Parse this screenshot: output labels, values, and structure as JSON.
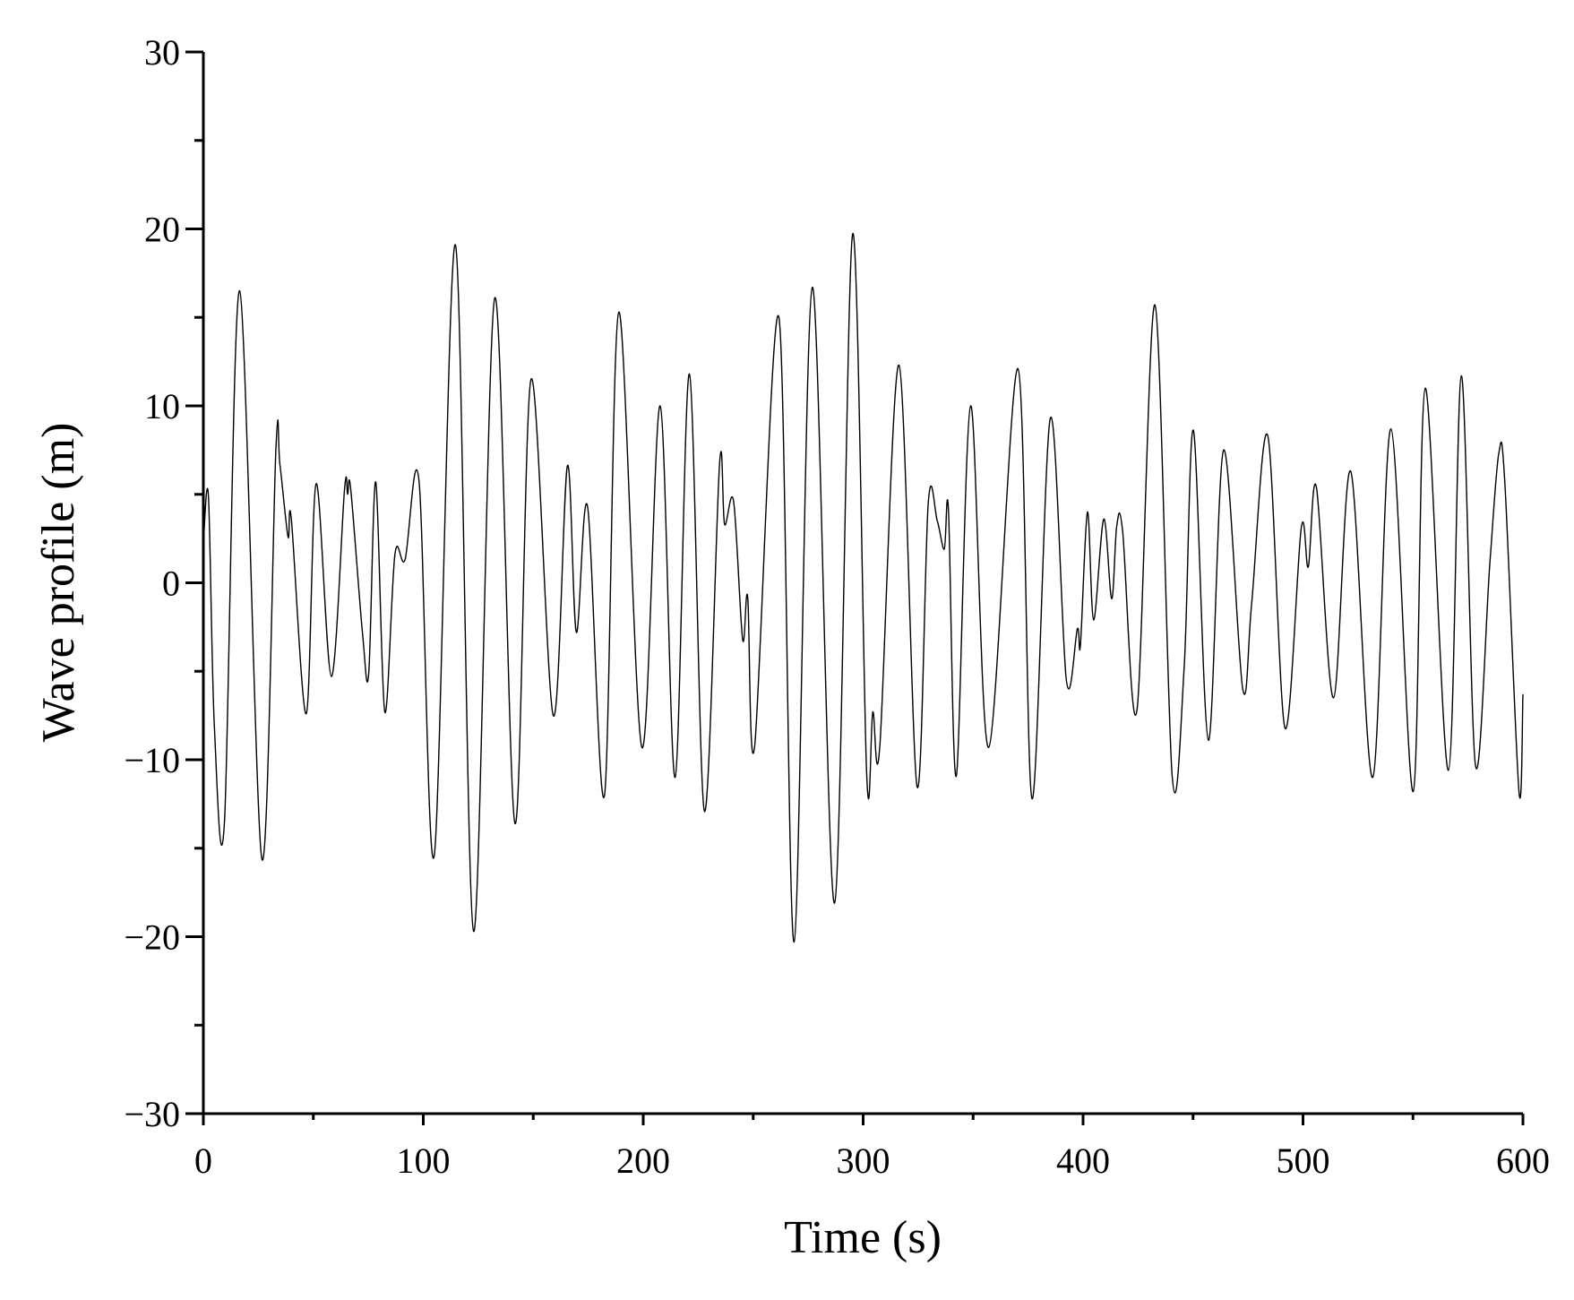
{
  "chart_data": {
    "type": "line",
    "x_label": "Time (s)",
    "y_label": "Wave profile (m)",
    "color": "#000000",
    "xlim": [
      0,
      600
    ],
    "xticks": [
      0,
      100,
      200,
      300,
      400,
      500,
      600
    ],
    "xminorticks": [
      50,
      150,
      250,
      350,
      450,
      550
    ],
    "ylim": [
      -30,
      30
    ],
    "yticks": [
      {
        "value": -30,
        "label": "−30"
      },
      {
        "value": -20,
        "label": "−20"
      },
      {
        "value": -10,
        "label": "−10"
      },
      0,
      10,
      20,
      30
    ],
    "yminorticks": [
      -25,
      -15,
      -5,
      5,
      15,
      25
    ],
    "x": [
      0,
      2.3,
      5,
      9.6,
      16.5,
      26.6,
      33,
      34.8,
      38.5,
      40,
      46.8,
      51.3,
      58.2,
      64.2,
      65.6,
      67,
      72.4,
      75.2,
      78.4,
      82.5,
      87.1,
      91.7,
      98.1,
      105,
      114.6,
      122.9,
      132.5,
      141.7,
      149,
      159.1,
      165.5,
      169.6,
      174.7,
      182.4,
      188.9,
      199.4,
      207.7,
      214.5,
      221,
      227.8,
      234.7,
      237,
      241.1,
      245.2,
      247.5,
      250.7,
      261.7,
      268.6,
      276.9,
      287,
      295.2,
      301.6,
      304.4,
      307.6,
      316.3,
      324.5,
      329.6,
      333.7,
      336.9,
      338.8,
      342.4,
      348.9,
      357.1,
      370.4,
      376.8,
      385.1,
      392.4,
      397.4,
      398.8,
      402,
      404.8,
      409.4,
      413,
      415.3,
      418,
      424.5,
      432.7,
      440.5,
      446,
      450.2,
      457,
      463.9,
      472.6,
      476.7,
      484,
      491.8,
      499.2,
      502.4,
      506.1,
      513.9,
      521.7,
      531.7,
      540,
      550.1,
      555.6,
      566.1,
      572,
      578.4,
      584.9,
      589,
      591.8,
      598.2,
      600
    ],
    "values": [
      2.2,
      4.9,
      -8.1,
      -13.5,
      16.5,
      -15.6,
      7.6,
      6.7,
      2.6,
      3.6,
      -7.4,
      5.6,
      -5.3,
      5.3,
      5,
      5.3,
      -2.9,
      -5.1,
      5.7,
      -7.3,
      1.6,
      1.3,
      5.7,
      -15.4,
      19.1,
      -19.7,
      16.1,
      -13.6,
      11.5,
      -7.5,
      6.6,
      -2.8,
      4.3,
      -12,
      15.3,
      -9.3,
      10,
      -11,
      11.8,
      -12.9,
      6.7,
      3.3,
      4.6,
      -3.2,
      -0.8,
      -9.2,
      15,
      -20.3,
      16.7,
      -18.1,
      19.7,
      -10.8,
      -7.3,
      -9.2,
      12.3,
      -11.5,
      4.5,
      3.5,
      1.9,
      4.1,
      -10.9,
      10,
      -9.3,
      12.1,
      -12.2,
      9.3,
      -5.5,
      -2.6,
      -3.5,
      4,
      -2.1,
      3.6,
      -0.9,
      3.2,
      2.9,
      -7.2,
      15.7,
      -10.9,
      -4.7,
      8.6,
      -8.9,
      7.5,
      -6,
      -1.1,
      8.3,
      -8.2,
      3.1,
      0.9,
      5.4,
      -6.5,
      6.3,
      -11,
      8.7,
      -11.8,
      11,
      -10.6,
      11.7,
      -10.3,
      1,
      7.3,
      5.6,
      -11.8,
      -6.3
    ]
  }
}
